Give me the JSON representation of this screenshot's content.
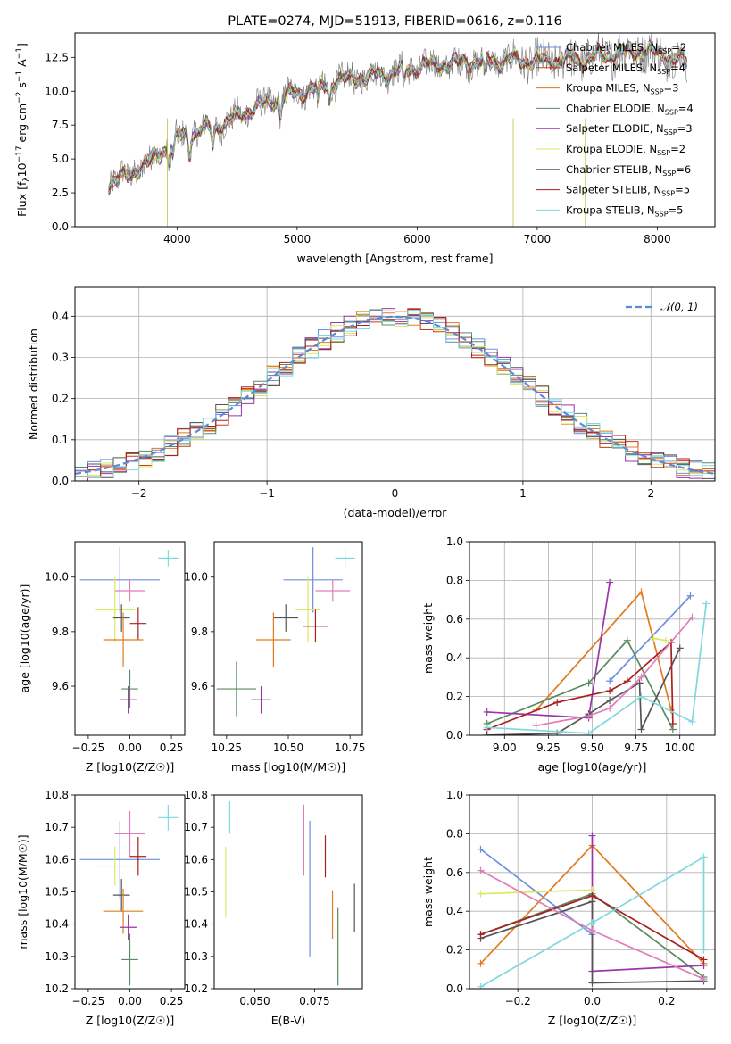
{
  "page": {
    "width": 819,
    "height": 1170
  },
  "colors": {
    "Chabrier MILES": "#6b8fde",
    "Salpeter MILES": "#c83a1a",
    "Kroupa MILES": "#e07b1f",
    "Chabrier ELODIE": "#5a8a62",
    "Salpeter ELODIE": "#9a36a8",
    "Kroupa ELODIE": "#dce860",
    "Chabrier STELIB": "#555555",
    "Salpeter STELIB": "#a82020",
    "Kroupa STELIB": "#80d8de",
    "pink": "#e07cb8",
    "normal": "#5b8bd8"
  },
  "chart_data": [
    {
      "id": "spectrum",
      "type": "line",
      "title": "PLATE=0274, MJD=51913, FIBERID=0616, z=0.116",
      "xlabel": "wavelength [Angstrom, rest frame]",
      "ylabel": "Flux [f_λ 10^{-17} erg cm^{-2} s^{-1} A^{-1}]",
      "xlim": [
        3150,
        8480
      ],
      "ylim": [
        0,
        14.3
      ],
      "xticks": [
        4000,
        5000,
        6000,
        7000,
        8000
      ],
      "yticks": [
        0.0,
        2.5,
        5.0,
        7.5,
        10.0,
        12.5
      ],
      "ytick_labels": [
        "0.0",
        "2.5",
        "5.0",
        "7.5",
        "10.0",
        "12.5"
      ],
      "continuum": {
        "x": [
          3430,
          3600,
          3800,
          4000,
          4200,
          4400,
          4600,
          4800,
          5000,
          5200,
          5400,
          5600,
          5800,
          6000,
          6200,
          6400,
          6600,
          6800,
          7000,
          7200,
          7400,
          7600,
          7800,
          8000,
          8200,
          8250
        ],
        "y": [
          3.2,
          3.8,
          5.0,
          6.5,
          7.1,
          7.6,
          8.6,
          9.3,
          9.9,
          10.4,
          10.9,
          11.1,
          11.4,
          11.8,
          12.0,
          12.1,
          12.2,
          12.3,
          12.2,
          12.3,
          12.4,
          12.7,
          13.0,
          12.8,
          12.3,
          12.2
        ]
      },
      "series_colors": [
        "Chabrier MILES",
        "Salpeter MILES",
        "Kroupa MILES",
        "Chabrier ELODIE",
        "Salpeter ELODIE",
        "Kroupa ELODIE",
        "Chabrier STELIB",
        "Salpeter STELIB",
        "Kroupa STELIB"
      ],
      "legend": [
        {
          "label": "Chabrier MILES, N",
          "n": "2",
          "color": "Chabrier MILES"
        },
        {
          "label": "Salpeter MILES, N",
          "n": "4",
          "color": "Salpeter MILES"
        },
        {
          "label": "Kroupa MILES, N",
          "n": "3",
          "color": "Kroupa MILES"
        },
        {
          "label": "Chabrier ELODIE, N",
          "n": "4",
          "color": "Chabrier ELODIE"
        },
        {
          "label": "Salpeter ELODIE, N",
          "n": "3",
          "color": "Salpeter ELODIE"
        },
        {
          "label": "Kroupa ELODIE, N",
          "n": "2",
          "color": "Kroupa ELODIE"
        },
        {
          "label": "Chabrier STELIB, N",
          "n": "6",
          "color": "Chabrier STELIB"
        },
        {
          "label": "Salpeter STELIB, N",
          "n": "5",
          "color": "Salpeter STELIB"
        },
        {
          "label": "Kroupa STELIB, N",
          "n": "5",
          "color": "Kroupa STELIB"
        }
      ],
      "legend_placement": "upper right"
    },
    {
      "id": "residuals",
      "type": "line",
      "xlabel": "(data-model)/error",
      "ylabel": "Normed distribution",
      "xlim": [
        -2.5,
        2.5
      ],
      "ylim": [
        0,
        0.47
      ],
      "xticks": [
        -2,
        -1,
        0,
        1,
        2
      ],
      "xtick_labels": [
        "−2",
        "−1",
        "0",
        "1",
        "2"
      ],
      "yticks": [
        0.0,
        0.1,
        0.2,
        0.3,
        0.4
      ],
      "ytick_labels": [
        "0.0",
        "0.1",
        "0.2",
        "0.3",
        "0.4"
      ],
      "grid": true,
      "bin_width": 0.1,
      "legend": "𝒩(0, 1)",
      "legend_placement": "upper right"
    },
    {
      "id": "age_vs_Z",
      "type": "scatter",
      "xlabel": "Z [log10(Z/Z☉)]",
      "ylabel": "age  [log10(age/yr)]",
      "xlim": [
        -0.33,
        0.33
      ],
      "ylim": [
        9.42,
        10.13
      ],
      "xticks": [
        -0.25,
        0.0,
        0.25
      ],
      "xtick_labels": [
        "−0.25",
        "0.00",
        "0.25"
      ],
      "yticks": [
        9.6,
        9.8,
        10.0
      ],
      "ytick_labels": [
        "9.6",
        "9.8",
        "10.0"
      ],
      "points": [
        {
          "color": "Chabrier MILES",
          "x": -0.06,
          "xerr": 0.24,
          "y": 9.99,
          "yerr": 0.12
        },
        {
          "color": "Kroupa STELIB",
          "x": 0.23,
          "xerr": 0.06,
          "y": 10.07,
          "yerr": 0.03
        },
        {
          "color": "pink",
          "x": 0.0,
          "xerr": 0.09,
          "y": 9.95,
          "yerr": 0.04
        },
        {
          "color": "Kroupa ELODIE",
          "x": -0.09,
          "xerr": 0.12,
          "y": 9.88,
          "yerr": 0.12
        },
        {
          "color": "Chabrier STELIB",
          "x": -0.05,
          "xerr": 0.05,
          "y": 9.85,
          "yerr": 0.05
        },
        {
          "color": "Salpeter STELIB",
          "x": 0.05,
          "xerr": 0.05,
          "y": 9.83,
          "yerr": 0.06
        },
        {
          "color": "Kroupa MILES",
          "x": -0.04,
          "xerr": 0.12,
          "y": 9.77,
          "yerr": 0.1
        },
        {
          "color": "Chabrier ELODIE",
          "x": 0.0,
          "xerr": 0.05,
          "y": 9.59,
          "yerr": 0.07
        },
        {
          "color": "Salpeter ELODIE",
          "x": -0.01,
          "xerr": 0.05,
          "y": 9.55,
          "yerr": 0.05
        }
      ]
    },
    {
      "id": "age_vs_mass",
      "type": "scatter",
      "xlabel": "mass [log10(M/M☉)]",
      "xlim": [
        10.2,
        10.8
      ],
      "ylim": [
        9.42,
        10.13
      ],
      "xticks": [
        10.25,
        10.5,
        10.75
      ],
      "xtick_labels": [
        "10.25",
        "10.50",
        "10.75"
      ],
      "yticks": [
        9.6,
        9.8,
        10.0
      ],
      "ytick_labels": [
        "9.6",
        "9.8",
        "10.0"
      ],
      "points": [
        {
          "color": "Chabrier MILES",
          "x": 10.6,
          "xerr": 0.12,
          "y": 9.99,
          "yerr": 0.12
        },
        {
          "color": "Kroupa STELIB",
          "x": 10.73,
          "xerr": 0.04,
          "y": 10.07,
          "yerr": 0.03
        },
        {
          "color": "pink",
          "x": 10.68,
          "xerr": 0.07,
          "y": 9.95,
          "yerr": 0.04
        },
        {
          "color": "Kroupa ELODIE",
          "x": 10.58,
          "xerr": 0.05,
          "y": 9.88,
          "yerr": 0.12
        },
        {
          "color": "Chabrier STELIB",
          "x": 10.49,
          "xerr": 0.05,
          "y": 9.85,
          "yerr": 0.05
        },
        {
          "color": "Salpeter STELIB",
          "x": 10.61,
          "xerr": 0.05,
          "y": 9.82,
          "yerr": 0.06
        },
        {
          "color": "Kroupa MILES",
          "x": 10.44,
          "xerr": 0.07,
          "y": 9.77,
          "yerr": 0.1
        },
        {
          "color": "Chabrier ELODIE",
          "x": 10.29,
          "xerr": 0.08,
          "y": 9.59,
          "yerr": 0.1
        },
        {
          "color": "Salpeter ELODIE",
          "x": 10.39,
          "xerr": 0.04,
          "y": 9.55,
          "yerr": 0.05
        }
      ]
    },
    {
      "id": "weight_vs_age",
      "type": "line",
      "xlabel": "age  [log10(age/yr)]",
      "ylabel": "mass weight",
      "xlim": [
        8.8,
        10.2
      ],
      "ylim": [
        0,
        1
      ],
      "xticks": [
        9.0,
        9.25,
        9.5,
        9.75,
        10.0
      ],
      "xtick_labels": [
        "9.00",
        "9.25",
        "9.50",
        "9.75",
        "10.00"
      ],
      "yticks": [
        0.0,
        0.2,
        0.4,
        0.6,
        0.8,
        1.0
      ],
      "ytick_labels": [
        "0.0",
        "0.2",
        "0.4",
        "0.6",
        "0.8",
        "1.0"
      ],
      "grid": true,
      "series": [
        {
          "color": "Chabrier MILES",
          "x": [
            9.6,
            10.06
          ],
          "y": [
            0.28,
            0.72
          ]
        },
        {
          "color": "Kroupa MILES",
          "x": [
            9.18,
            9.78,
            9.95
          ],
          "y": [
            0.13,
            0.74,
            0.13
          ]
        },
        {
          "color": "Chabrier ELODIE",
          "x": [
            8.9,
            9.48,
            9.7,
            9.96
          ],
          "y": [
            0.06,
            0.27,
            0.49,
            0.03
          ]
        },
        {
          "color": "Salpeter ELODIE",
          "x": [
            8.9,
            9.48,
            9.6
          ],
          "y": [
            0.12,
            0.09,
            0.79
          ]
        },
        {
          "color": "Kroupa ELODIE",
          "x": [
            9.85,
            9.92
          ],
          "y": [
            0.5,
            0.49
          ]
        },
        {
          "color": "Chabrier STELIB",
          "x": [
            8.9,
            9.3,
            9.48,
            9.6,
            9.77,
            9.78,
            10.0
          ],
          "y": [
            0.0,
            0.01,
            0.11,
            0.18,
            0.27,
            0.03,
            0.45
          ]
        },
        {
          "color": "Salpeter STELIB",
          "x": [
            8.9,
            9.3,
            9.6,
            9.7,
            9.95,
            9.96
          ],
          "y": [
            0.03,
            0.17,
            0.23,
            0.28,
            0.48,
            0.06
          ]
        },
        {
          "color": "Kroupa STELIB",
          "x": [
            8.9,
            9.48,
            9.78,
            10.07,
            10.15
          ],
          "y": [
            0.04,
            0.01,
            0.2,
            0.07,
            0.68
          ]
        },
        {
          "color": "pink",
          "x": [
            9.18,
            9.48,
            9.6,
            9.78,
            10.07
          ],
          "y": [
            0.05,
            0.1,
            0.14,
            0.3,
            0.61
          ]
        }
      ]
    },
    {
      "id": "mass_vs_Z",
      "type": "scatter",
      "xlabel": "Z [log10(Z/Z☉)]",
      "ylabel": "mass [log10(M/M☉)]",
      "xlim": [
        -0.33,
        0.33
      ],
      "ylim": [
        10.2,
        10.8
      ],
      "xticks": [
        -0.25,
        0.0,
        0.25
      ],
      "xtick_labels": [
        "−0.25",
        "0.00",
        "0.25"
      ],
      "yticks": [
        10.2,
        10.3,
        10.4,
        10.5,
        10.6,
        10.7,
        10.8
      ],
      "ytick_labels": [
        "10.2",
        "10.3",
        "10.4",
        "10.5",
        "10.6",
        "10.7",
        "10.8"
      ],
      "points": [
        {
          "color": "Chabrier MILES",
          "x": -0.06,
          "xerr": 0.24,
          "y": 10.6,
          "yerr": 0.12
        },
        {
          "color": "Kroupa STELIB",
          "x": 0.23,
          "xerr": 0.06,
          "y": 10.73,
          "yerr": 0.04
        },
        {
          "color": "pink",
          "x": 0.0,
          "xerr": 0.09,
          "y": 10.68,
          "yerr": 0.07
        },
        {
          "color": "Kroupa ELODIE",
          "x": -0.09,
          "xerr": 0.12,
          "y": 10.58,
          "yerr": 0.06
        },
        {
          "color": "Salpeter STELIB",
          "x": 0.05,
          "xerr": 0.05,
          "y": 10.61,
          "yerr": 0.06
        },
        {
          "color": "Chabrier STELIB",
          "x": -0.05,
          "xerr": 0.05,
          "y": 10.49,
          "yerr": 0.05
        },
        {
          "color": "Kroupa MILES",
          "x": -0.04,
          "xerr": 0.12,
          "y": 10.44,
          "yerr": 0.07
        },
        {
          "color": "Salpeter ELODIE",
          "x": -0.01,
          "xerr": 0.05,
          "y": 10.39,
          "yerr": 0.04
        },
        {
          "color": "Chabrier ELODIE",
          "x": 0.0,
          "xerr": 0.05,
          "y": 10.29,
          "yerr": 0.08
        }
      ]
    },
    {
      "id": "mass_vs_ebv",
      "type": "scatter",
      "xlabel": "E(B-V)",
      "xlim": [
        0.033,
        0.095
      ],
      "ylim": [
        10.2,
        10.8
      ],
      "xticks": [
        0.05,
        0.075
      ],
      "xtick_labels": [
        "0.050",
        "0.075"
      ],
      "yticks": [
        10.2,
        10.3,
        10.4,
        10.5,
        10.6,
        10.7,
        10.8
      ],
      "ytick_labels": [
        "10.2",
        "10.3",
        "10.4",
        "10.5",
        "10.6",
        "10.7",
        "10.8"
      ],
      "points": [
        {
          "color": "Kroupa STELIB",
          "x": 0.0395,
          "xerr": 0,
          "y": 10.73,
          "yerr": 0.05
        },
        {
          "color": "Kroupa ELODIE",
          "x": 0.0378,
          "xerr": 0,
          "y": 10.53,
          "yerr": 0.11
        },
        {
          "color": "pink",
          "x": 0.0705,
          "xerr": 0,
          "y": 10.66,
          "yerr": 0.11
        },
        {
          "color": "Chabrier MILES",
          "x": 0.073,
          "xerr": 0,
          "y": 10.51,
          "yerr": 0.21
        },
        {
          "color": "Salpeter STELIB",
          "x": 0.0795,
          "xerr": 0,
          "y": 10.61,
          "yerr": 0.065
        },
        {
          "color": "Kroupa MILES",
          "x": 0.0825,
          "xerr": 0,
          "y": 10.43,
          "yerr": 0.075
        },
        {
          "color": "Chabrier ELODIE",
          "x": 0.0848,
          "xerr": 0,
          "y": 10.33,
          "yerr": 0.12
        },
        {
          "color": "Chabrier STELIB",
          "x": 0.0917,
          "xerr": 0,
          "y": 10.45,
          "yerr": 0.075
        }
      ]
    },
    {
      "id": "weight_vs_Z",
      "type": "line",
      "xlabel": "Z [log10(Z/Z☉)]",
      "ylabel": "mass weight",
      "xlim": [
        -0.33,
        0.33
      ],
      "ylim": [
        0,
        1
      ],
      "xticks": [
        -0.2,
        0.0,
        0.2
      ],
      "xtick_labels": [
        "−0.2",
        "0.0",
        "0.2"
      ],
      "yticks": [
        0.0,
        0.2,
        0.4,
        0.6,
        0.8,
        1.0
      ],
      "ytick_labels": [
        "0.0",
        "0.2",
        "0.4",
        "0.6",
        "0.8",
        "1.0"
      ],
      "grid": true,
      "series": [
        {
          "color": "Chabrier MILES",
          "x": [
            -0.3,
            0.0
          ],
          "y": [
            0.72,
            0.28
          ]
        },
        {
          "color": "Kroupa MILES",
          "x": [
            -0.3,
            0.0,
            0.3
          ],
          "y": [
            0.13,
            0.74,
            0.13
          ]
        },
        {
          "color": "Chabrier ELODIE",
          "x": [
            -0.3,
            0.0,
            0.3
          ],
          "y": [
            0.28,
            0.49,
            0.06
          ]
        },
        {
          "color": "Salpeter ELODIE",
          "x": [
            0.0,
            0.0,
            0.3
          ],
          "y": [
            0.79,
            0.09,
            0.12
          ]
        },
        {
          "color": "Kroupa ELODIE",
          "x": [
            -0.3,
            0.0
          ],
          "y": [
            0.49,
            0.51
          ]
        },
        {
          "color": "Chabrier STELIB",
          "x": [
            -0.3,
            0.0,
            0.0,
            0.3
          ],
          "y": [
            0.26,
            0.45,
            0.03,
            0.04
          ]
        },
        {
          "color": "Salpeter STELIB",
          "x": [
            -0.3,
            0.0,
            0.3
          ],
          "y": [
            0.28,
            0.48,
            0.15
          ]
        },
        {
          "color": "Kroupa STELIB",
          "x": [
            -0.3,
            0.0,
            0.3,
            0.3
          ],
          "y": [
            0.01,
            0.34,
            0.68,
            0.2
          ]
        },
        {
          "color": "pink",
          "x": [
            -0.3,
            0.0,
            0.3
          ],
          "y": [
            0.61,
            0.3,
            0.05
          ]
        }
      ]
    }
  ]
}
